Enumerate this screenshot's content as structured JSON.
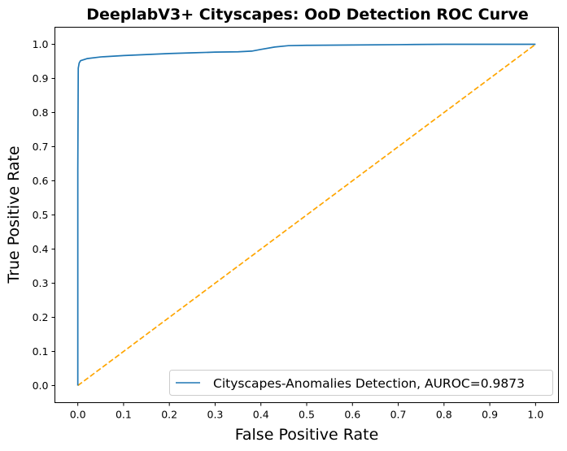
{
  "chart_data": {
    "type": "line",
    "title": "DeeplabV3+ Cityscapes: OoD Detection ROC Curve",
    "xlabel": "False Positive Rate",
    "ylabel": "True Positive Rate",
    "xlim": [
      -0.05,
      1.05
    ],
    "ylim": [
      -0.05,
      1.05
    ],
    "xticks": [
      0.0,
      0.1,
      0.2,
      0.3,
      0.4,
      0.5,
      0.6,
      0.7,
      0.8,
      0.9,
      1.0
    ],
    "yticks": [
      0.0,
      0.1,
      0.2,
      0.3,
      0.4,
      0.5,
      0.6,
      0.7,
      0.8,
      0.9,
      1.0
    ],
    "xtick_labels": [
      "0.0",
      "0.1",
      "0.2",
      "0.3",
      "0.4",
      "0.5",
      "0.6",
      "0.7",
      "0.8",
      "0.9",
      "1.0"
    ],
    "ytick_labels": [
      "0.0",
      "0.1",
      "0.2",
      "0.3",
      "0.4",
      "0.5",
      "0.6",
      "0.7",
      "0.8",
      "0.9",
      "1.0"
    ],
    "grid": false,
    "legend_position": "lower-right",
    "series": [
      {
        "name": "Cityscapes-Anomalies Detection, AUROC=0.9873",
        "style": "solid",
        "color": "#1f77b4",
        "points": [
          [
            0.0,
            0.0
          ],
          [
            0.0,
            0.63
          ],
          [
            0.001,
            0.93
          ],
          [
            0.003,
            0.945
          ],
          [
            0.006,
            0.952
          ],
          [
            0.02,
            0.958
          ],
          [
            0.05,
            0.963
          ],
          [
            0.1,
            0.967
          ],
          [
            0.15,
            0.97
          ],
          [
            0.2,
            0.973
          ],
          [
            0.25,
            0.975
          ],
          [
            0.3,
            0.977
          ],
          [
            0.35,
            0.978
          ],
          [
            0.38,
            0.98
          ],
          [
            0.4,
            0.985
          ],
          [
            0.43,
            0.992
          ],
          [
            0.46,
            0.996
          ],
          [
            0.5,
            0.997
          ],
          [
            0.6,
            0.998
          ],
          [
            0.7,
            0.999
          ],
          [
            0.8,
            1.0
          ],
          [
            0.9,
            1.0
          ],
          [
            1.0,
            1.0
          ]
        ]
      },
      {
        "name": "",
        "style": "dashed",
        "color": "#ffa500",
        "points": [
          [
            0.0,
            0.0
          ],
          [
            1.0,
            1.0
          ]
        ]
      }
    ]
  }
}
